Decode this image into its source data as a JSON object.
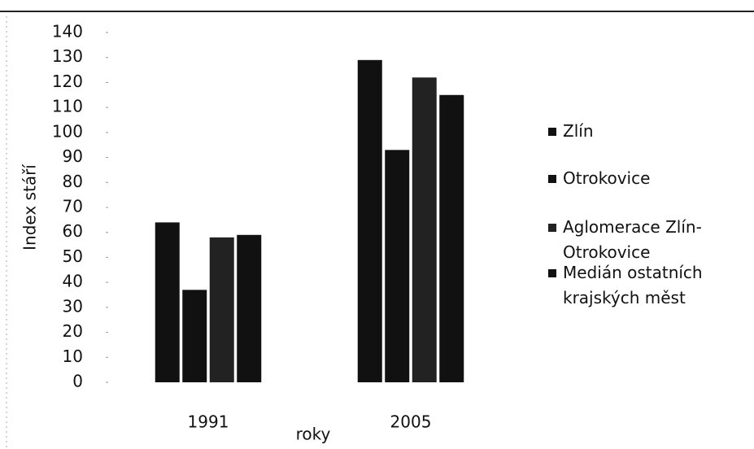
{
  "chart_data": {
    "type": "bar",
    "categories": [
      "1991",
      "2005"
    ],
    "series": [
      {
        "name": "Zlín",
        "color": "#111111",
        "values": [
          64,
          129
        ]
      },
      {
        "name": "Otrokovice",
        "color": "#111111",
        "values": [
          37,
          93
        ]
      },
      {
        "name": "Aglomerace Zlín-Otrokovice",
        "color": "#222222",
        "values": [
          58,
          122
        ]
      },
      {
        "name": "Medián ostatních krajských měst",
        "color": "#111111",
        "values": [
          59,
          115
        ]
      }
    ],
    "ylim": [
      0,
      140
    ],
    "yticks": [
      0,
      10,
      20,
      30,
      40,
      50,
      60,
      70,
      80,
      90,
      100,
      110,
      120,
      130,
      140
    ],
    "ylabel": "Index stáří",
    "xlabel": "roky",
    "legend": "right",
    "grid": false
  }
}
